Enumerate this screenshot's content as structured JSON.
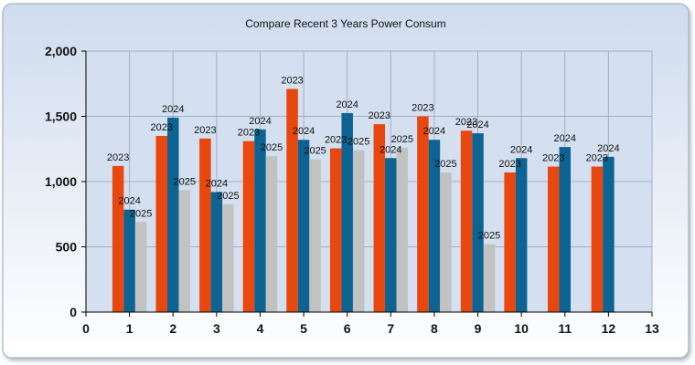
{
  "chart_data": {
    "type": "bar",
    "title": "Compare Recent 3 Years Power Consum",
    "xlabel": "",
    "ylabel": "",
    "x_ticks": [
      "0",
      "1",
      "2",
      "3",
      "4",
      "5",
      "6",
      "7",
      "8",
      "9",
      "10",
      "11",
      "12",
      "13"
    ],
    "y_ticks": [
      "0",
      "500",
      "1,000",
      "1,500",
      "2,000"
    ],
    "xlim": [
      0,
      13
    ],
    "ylim": [
      0,
      2000
    ],
    "grid": true,
    "legend": "none",
    "categories": [
      1,
      2,
      3,
      4,
      5,
      6,
      7,
      8,
      9,
      10,
      11,
      12
    ],
    "series": [
      {
        "label": "2023",
        "color": "#e8470f",
        "values": [
          1120,
          1350,
          1330,
          1310,
          1710,
          1255,
          1440,
          1500,
          1390,
          1070,
          1115,
          1115
        ]
      },
      {
        "label": "2024",
        "color": "#0d6391",
        "values": [
          785,
          1490,
          920,
          1400,
          1320,
          1525,
          1180,
          1320,
          1370,
          1180,
          1265,
          1190
        ]
      },
      {
        "label": "2025",
        "color": "#c2c2c2",
        "values": [
          690,
          935,
          825,
          1195,
          1170,
          1240,
          1260,
          1070,
          520,
          null,
          null,
          null
        ]
      }
    ]
  }
}
